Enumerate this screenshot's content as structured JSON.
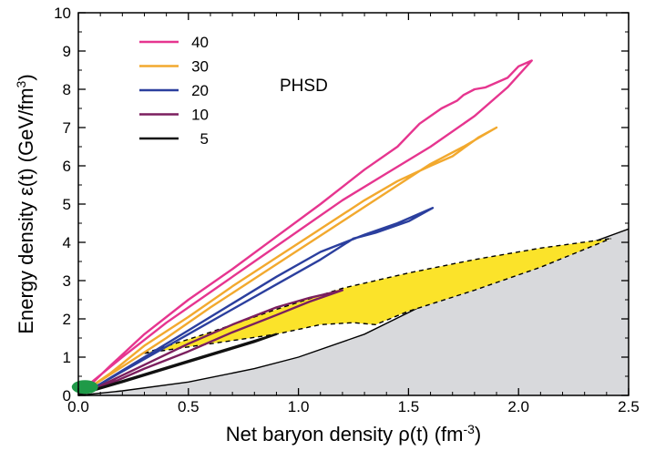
{
  "chart_data": {
    "type": "line",
    "xlabel": "Net baryon density ρ(t) (fm",
    "xlabel_sup": "-3",
    "xlabel_end": ")",
    "ylabel": "Energy density ε(t) (GeV/fm",
    "ylabel_sup": "3",
    "ylabel_end": ")",
    "xlim": [
      0,
      2.5
    ],
    "ylim": [
      0,
      10
    ],
    "x_ticks": [
      "0.0",
      "0.5",
      "1.0",
      "1.5",
      "2.0",
      "2.5"
    ],
    "y_ticks": [
      "0",
      "1",
      "2",
      "3",
      "4",
      "5",
      "6",
      "7",
      "8",
      "9",
      "10"
    ],
    "grid": false,
    "legend_position": "top-left",
    "annotation": "PHSD",
    "colors": {
      "40": "#e6358f",
      "30": "#f2a92e",
      "20": "#2b3f9e",
      "10": "#7b1f5e",
      "5": "#111111",
      "region_gray": "#d8d9dc",
      "region_yellow": "#fbe32a",
      "region_green": "#1f9a48"
    },
    "series": [
      {
        "name": "40",
        "color": "#e6358f",
        "points": [
          [
            0.0,
            0.02
          ],
          [
            0.05,
            0.3
          ],
          [
            0.2,
            1.0
          ],
          [
            0.4,
            1.9
          ],
          [
            0.6,
            2.7
          ],
          [
            0.8,
            3.5
          ],
          [
            1.0,
            4.3
          ],
          [
            1.2,
            5.1
          ],
          [
            1.4,
            5.8
          ],
          [
            1.6,
            6.5
          ],
          [
            1.8,
            7.3
          ],
          [
            1.95,
            8.05
          ],
          [
            2.06,
            8.75
          ],
          [
            2.0,
            8.6
          ],
          [
            1.95,
            8.3
          ],
          [
            1.85,
            8.05
          ],
          [
            1.8,
            8.0
          ],
          [
            1.75,
            7.85
          ],
          [
            1.72,
            7.7
          ],
          [
            1.65,
            7.5
          ],
          [
            1.55,
            7.1
          ],
          [
            1.45,
            6.5
          ],
          [
            1.3,
            5.9
          ],
          [
            1.1,
            5.0
          ],
          [
            0.9,
            4.15
          ],
          [
            0.7,
            3.3
          ],
          [
            0.5,
            2.5
          ],
          [
            0.3,
            1.6
          ],
          [
            0.15,
            0.8
          ],
          [
            0.05,
            0.25
          ],
          [
            0.0,
            0.02
          ]
        ]
      },
      {
        "name": "30",
        "color": "#f2a92e",
        "points": [
          [
            0.0,
            0.02
          ],
          [
            0.05,
            0.2
          ],
          [
            0.2,
            0.75
          ],
          [
            0.4,
            1.5
          ],
          [
            0.6,
            2.3
          ],
          [
            0.8,
            3.05
          ],
          [
            1.0,
            3.8
          ],
          [
            1.2,
            4.55
          ],
          [
            1.4,
            5.3
          ],
          [
            1.6,
            6.05
          ],
          [
            1.75,
            6.5
          ],
          [
            1.9,
            7.0
          ],
          [
            1.82,
            6.75
          ],
          [
            1.7,
            6.25
          ],
          [
            1.6,
            6.0
          ],
          [
            1.45,
            5.6
          ],
          [
            1.3,
            5.1
          ],
          [
            1.1,
            4.35
          ],
          [
            0.9,
            3.6
          ],
          [
            0.7,
            2.85
          ],
          [
            0.5,
            2.05
          ],
          [
            0.3,
            1.3
          ],
          [
            0.15,
            0.6
          ],
          [
            0.05,
            0.2
          ],
          [
            0.0,
            0.02
          ]
        ]
      },
      {
        "name": "20",
        "color": "#2b3f9e",
        "points": [
          [
            0.0,
            0.02
          ],
          [
            0.1,
            0.3
          ],
          [
            0.3,
            1.0
          ],
          [
            0.5,
            1.7
          ],
          [
            0.7,
            2.4
          ],
          [
            0.9,
            3.1
          ],
          [
            1.1,
            3.75
          ],
          [
            1.3,
            4.2
          ],
          [
            1.45,
            4.5
          ],
          [
            1.61,
            4.9
          ],
          [
            1.5,
            4.55
          ],
          [
            1.35,
            4.25
          ],
          [
            1.25,
            4.1
          ],
          [
            1.1,
            3.55
          ],
          [
            0.9,
            2.9
          ],
          [
            0.7,
            2.25
          ],
          [
            0.5,
            1.6
          ],
          [
            0.3,
            0.95
          ],
          [
            0.1,
            0.3
          ],
          [
            0.0,
            0.02
          ]
        ]
      },
      {
        "name": "10",
        "color": "#7b1f5e",
        "points": [
          [
            0.0,
            0.02
          ],
          [
            0.1,
            0.25
          ],
          [
            0.3,
            0.8
          ],
          [
            0.5,
            1.35
          ],
          [
            0.7,
            1.85
          ],
          [
            0.9,
            2.3
          ],
          [
            1.05,
            2.55
          ],
          [
            1.2,
            2.75
          ],
          [
            1.15,
            2.65
          ],
          [
            1.05,
            2.45
          ],
          [
            0.9,
            2.1
          ],
          [
            0.7,
            1.65
          ],
          [
            0.5,
            1.15
          ],
          [
            0.3,
            0.7
          ],
          [
            0.1,
            0.2
          ],
          [
            0.0,
            0.02
          ]
        ]
      },
      {
        "name": "5",
        "color": "#111111",
        "points": [
          [
            0.0,
            0.02
          ],
          [
            0.1,
            0.2
          ],
          [
            0.3,
            0.55
          ],
          [
            0.5,
            0.9
          ],
          [
            0.7,
            1.25
          ],
          [
            0.9,
            1.6
          ],
          [
            0.8,
            1.4
          ],
          [
            0.6,
            1.05
          ],
          [
            0.4,
            0.7
          ],
          [
            0.2,
            0.35
          ],
          [
            0.05,
            0.1
          ],
          [
            0.0,
            0.02
          ]
        ]
      }
    ],
    "regions": {
      "gray_boundary": [
        [
          0.0,
          0.0
        ],
        [
          0.2,
          0.12
        ],
        [
          0.5,
          0.35
        ],
        [
          0.8,
          0.7
        ],
        [
          1.0,
          1.0
        ],
        [
          1.3,
          1.6
        ],
        [
          1.6,
          2.45
        ],
        [
          2.0,
          3.3
        ],
        [
          2.5,
          4.35
        ]
      ],
      "yellow_upper": [
        [
          0.3,
          1.1
        ],
        [
          0.6,
          1.65
        ],
        [
          0.9,
          2.25
        ],
        [
          1.2,
          2.8
        ],
        [
          1.5,
          3.2
        ],
        [
          1.8,
          3.55
        ],
        [
          2.1,
          3.85
        ],
        [
          2.42,
          4.1
        ]
      ],
      "yellow_lower": [
        [
          0.3,
          1.1
        ],
        [
          0.6,
          1.35
        ],
        [
          0.9,
          1.6
        ],
        [
          1.1,
          1.85
        ],
        [
          1.25,
          1.9
        ],
        [
          1.35,
          1.85
        ],
        [
          1.5,
          2.2
        ],
        [
          1.8,
          2.75
        ],
        [
          2.1,
          3.35
        ],
        [
          2.42,
          4.1
        ]
      ],
      "green_ellipse": {
        "cx": 0.03,
        "cy": 0.22,
        "rx": 0.06,
        "ry": 0.18
      }
    }
  }
}
